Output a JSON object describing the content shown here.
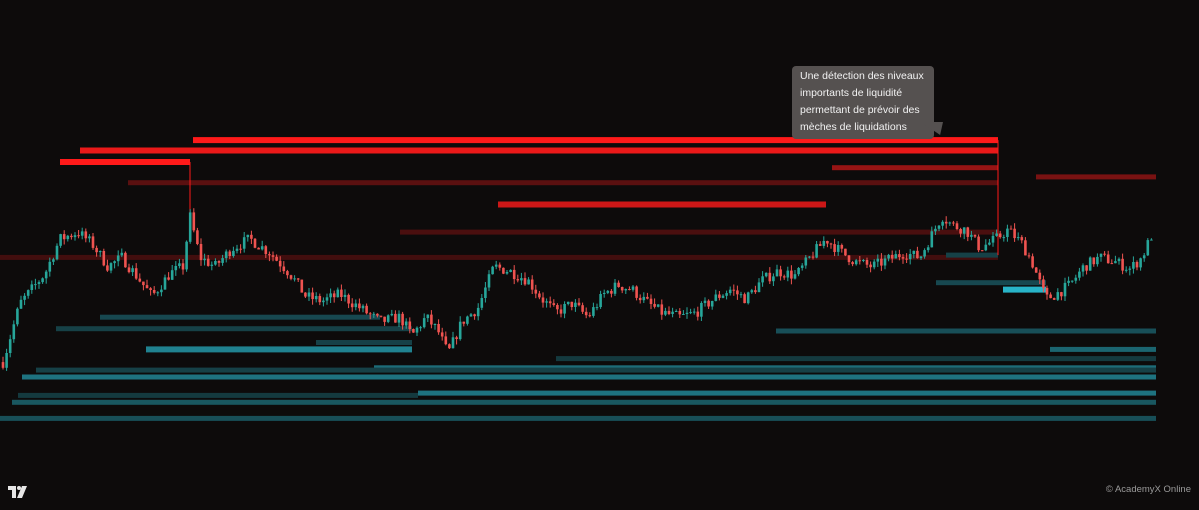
{
  "annotation": {
    "text": "Une détection des niveaux importants de liquidité permettant de prévoir des mèches de liquidations"
  },
  "footer": {
    "copyright": "© AcademyX Online",
    "logo_icon": "tradingview-logo-icon"
  },
  "colors": {
    "background": "#0d0b0b",
    "up_candle": "#27a69a",
    "down_candle": "#ef5350",
    "sell_liquidity": "#ff1a1a",
    "buy_liquidity": "#28b4c8",
    "callout_bg": "#555150"
  },
  "chart_data": {
    "type": "candlestick",
    "title": "",
    "xlabel": "",
    "ylabel": "",
    "ylim": [
      0,
      100
    ],
    "grid": false,
    "legend": "none",
    "path": [
      [
        0,
        12
      ],
      [
        20,
        42
      ],
      [
        45,
        55
      ],
      [
        60,
        70
      ],
      [
        78,
        73
      ],
      [
        92,
        68
      ],
      [
        108,
        58
      ],
      [
        122,
        62
      ],
      [
        140,
        52
      ],
      [
        152,
        45
      ],
      [
        170,
        55
      ],
      [
        183,
        58
      ],
      [
        190,
        80
      ],
      [
        200,
        62
      ],
      [
        215,
        58
      ],
      [
        232,
        66
      ],
      [
        250,
        70
      ],
      [
        270,
        64
      ],
      [
        290,
        55
      ],
      [
        306,
        45
      ],
      [
        322,
        43
      ],
      [
        340,
        46
      ],
      [
        360,
        40
      ],
      [
        380,
        34
      ],
      [
        400,
        36
      ],
      [
        412,
        28
      ],
      [
        426,
        36
      ],
      [
        438,
        30
      ],
      [
        448,
        20
      ],
      [
        462,
        34
      ],
      [
        478,
        40
      ],
      [
        494,
        58
      ],
      [
        510,
        56
      ],
      [
        528,
        52
      ],
      [
        542,
        44
      ],
      [
        556,
        38
      ],
      [
        572,
        42
      ],
      [
        588,
        36
      ],
      [
        604,
        46
      ],
      [
        618,
        50
      ],
      [
        632,
        48
      ],
      [
        648,
        42
      ],
      [
        662,
        38
      ],
      [
        680,
        36
      ],
      [
        696,
        38
      ],
      [
        714,
        44
      ],
      [
        730,
        48
      ],
      [
        746,
        44
      ],
      [
        762,
        52
      ],
      [
        778,
        56
      ],
      [
        796,
        54
      ],
      [
        812,
        63
      ],
      [
        826,
        70
      ],
      [
        842,
        64
      ],
      [
        856,
        60
      ],
      [
        872,
        58
      ],
      [
        888,
        61
      ],
      [
        904,
        64
      ],
      [
        920,
        62
      ],
      [
        932,
        72
      ],
      [
        942,
        80
      ],
      [
        952,
        76
      ],
      [
        966,
        74
      ],
      [
        980,
        66
      ],
      [
        996,
        70
      ],
      [
        1008,
        74
      ],
      [
        1022,
        68
      ],
      [
        1032,
        60
      ],
      [
        1046,
        44
      ],
      [
        1056,
        46
      ],
      [
        1070,
        50
      ],
      [
        1084,
        58
      ],
      [
        1100,
        62
      ],
      [
        1116,
        60
      ],
      [
        1130,
        57
      ],
      [
        1142,
        62
      ],
      [
        1152,
        72
      ]
    ],
    "liquidity_levels": [
      {
        "side": "sell",
        "price": 113,
        "x_start": 193,
        "x_end": 998,
        "intensity": 1.0
      },
      {
        "side": "sell",
        "price": 108.5,
        "x_start": 80,
        "x_end": 998,
        "intensity": 0.9
      },
      {
        "side": "sell",
        "price": 103.5,
        "x_start": 60,
        "x_end": 190,
        "intensity": 1.0
      },
      {
        "side": "sell",
        "price": 101,
        "x_start": 832,
        "x_end": 998,
        "intensity": 0.5
      },
      {
        "side": "sell",
        "price": 97,
        "x_start": 1036,
        "x_end": 1156,
        "intensity": 0.35
      },
      {
        "side": "sell",
        "price": 94.5,
        "x_start": 128,
        "x_end": 998,
        "intensity": 0.2
      },
      {
        "side": "sell",
        "price": 85,
        "x_start": 498,
        "x_end": 826,
        "intensity": 0.75
      },
      {
        "side": "sell",
        "price": 73,
        "x_start": 400,
        "x_end": 998,
        "intensity": 0.12
      },
      {
        "side": "sell",
        "price": 62,
        "x_start": 0,
        "x_end": 998,
        "intensity": 0.08
      },
      {
        "side": "buy",
        "price": 48,
        "x_start": 1003,
        "x_end": 1046,
        "intensity": 1.0
      },
      {
        "side": "buy",
        "price": 51,
        "x_start": 936,
        "x_end": 1046,
        "intensity": 0.25
      },
      {
        "side": "buy",
        "price": 63,
        "x_start": 946,
        "x_end": 998,
        "intensity": 0.2
      },
      {
        "side": "buy",
        "price": 36,
        "x_start": 100,
        "x_end": 380,
        "intensity": 0.25
      },
      {
        "side": "buy",
        "price": 31,
        "x_start": 56,
        "x_end": 412,
        "intensity": 0.2
      },
      {
        "side": "buy",
        "price": 30,
        "x_start": 776,
        "x_end": 1156,
        "intensity": 0.3
      },
      {
        "side": "buy",
        "price": 25,
        "x_start": 316,
        "x_end": 412,
        "intensity": 0.2
      },
      {
        "side": "buy",
        "price": 22,
        "x_start": 146,
        "x_end": 412,
        "intensity": 0.65
      },
      {
        "side": "buy",
        "price": 22,
        "x_start": 1050,
        "x_end": 1156,
        "intensity": 0.45
      },
      {
        "side": "buy",
        "price": 18,
        "x_start": 556,
        "x_end": 1156,
        "intensity": 0.15
      },
      {
        "side": "buy",
        "price": 14,
        "x_start": 374,
        "x_end": 1156,
        "intensity": 0.5
      },
      {
        "side": "buy",
        "price": 13,
        "x_start": 36,
        "x_end": 1156,
        "intensity": 0.2
      },
      {
        "side": "buy",
        "price": 10,
        "x_start": 22,
        "x_end": 1156,
        "intensity": 0.55
      },
      {
        "side": "buy",
        "price": 3,
        "x_start": 418,
        "x_end": 1156,
        "intensity": 0.55
      },
      {
        "side": "buy",
        "price": 2,
        "x_start": 18,
        "x_end": 418,
        "intensity": 0.15
      },
      {
        "side": "buy",
        "price": -1,
        "x_start": 12,
        "x_end": 1156,
        "intensity": 0.35
      },
      {
        "side": "buy",
        "price": -8,
        "x_start": 0,
        "x_end": 1156,
        "intensity": 0.3
      }
    ]
  }
}
